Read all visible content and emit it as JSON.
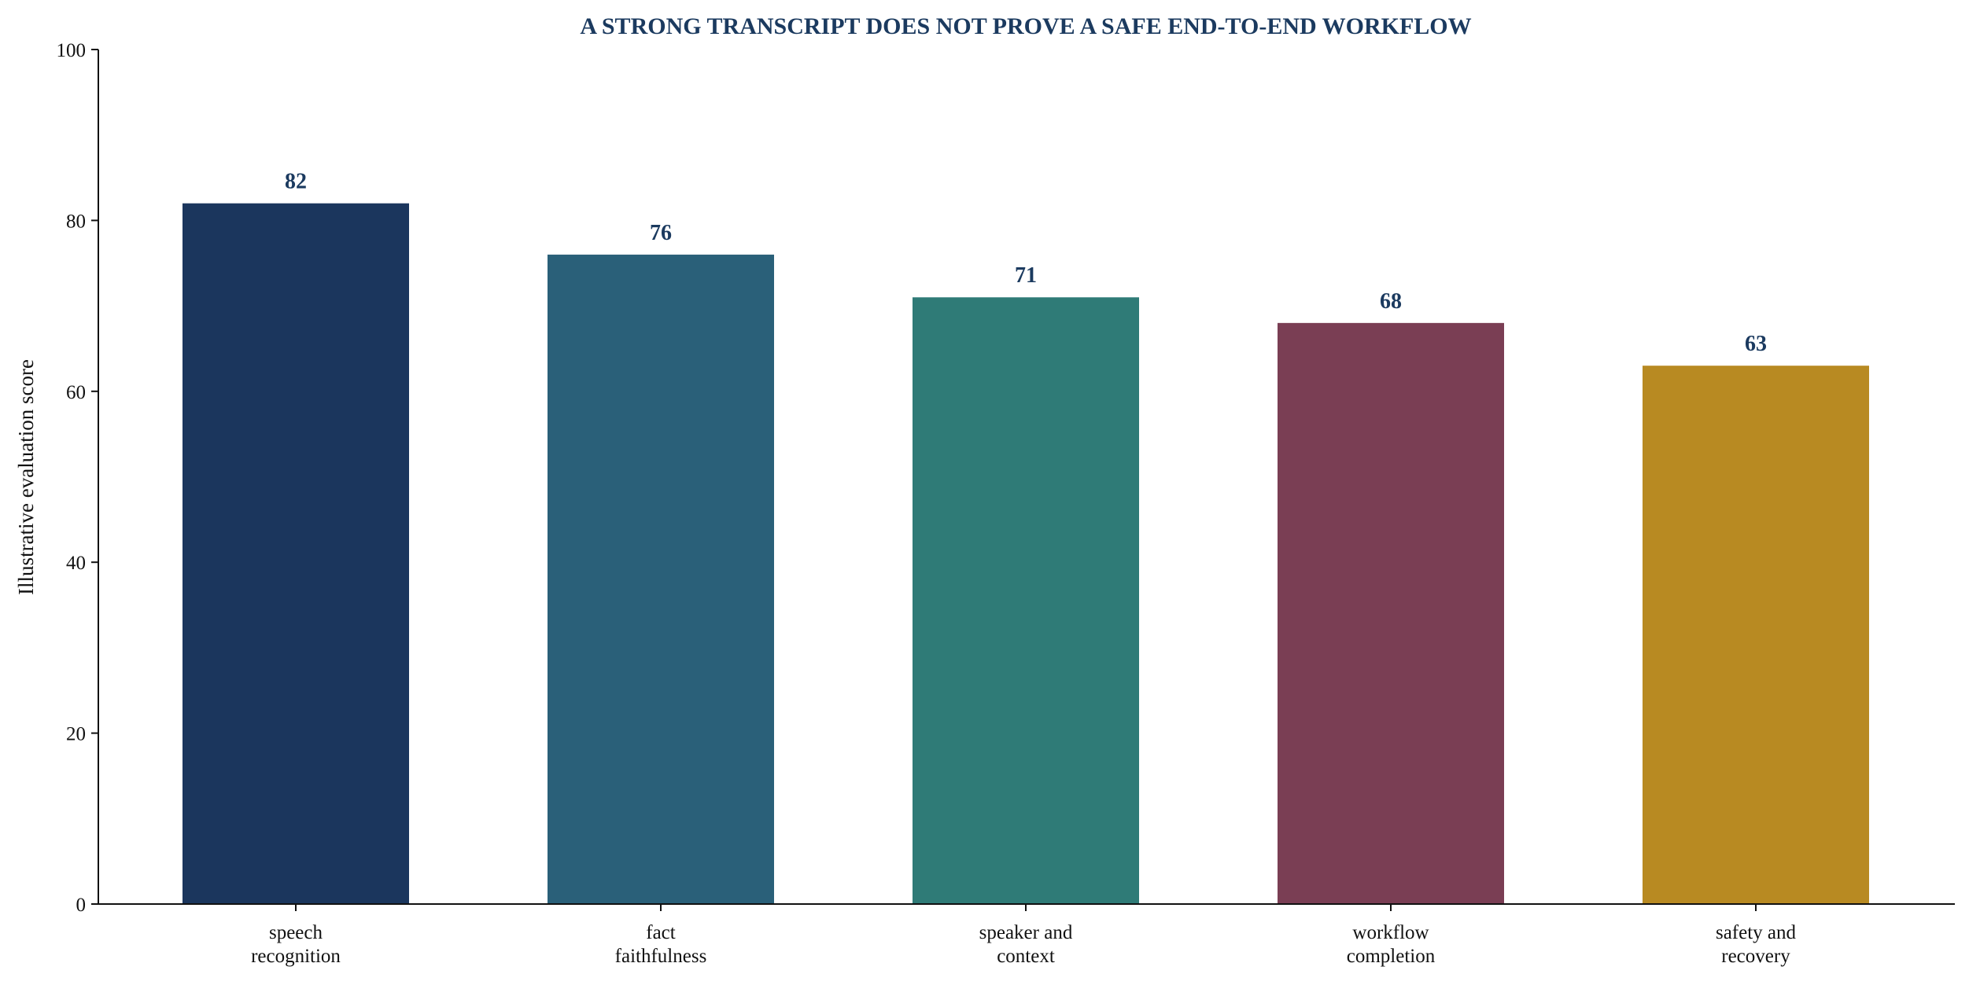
{
  "chart_data": {
    "type": "bar",
    "title": "A STRONG TRANSCRIPT DOES NOT PROVE A SAFE END-TO-END WORKFLOW",
    "xlabel": "",
    "ylabel": "Illustrative evaluation score",
    "ylim": [
      0,
      100
    ],
    "yticks": [
      0,
      20,
      40,
      60,
      80,
      100
    ],
    "grid": false,
    "legend": "none",
    "categories": [
      [
        "speech",
        "recognition"
      ],
      [
        "fact",
        "faithfulness"
      ],
      [
        "speaker and",
        "context"
      ],
      [
        "workflow",
        "completion"
      ],
      [
        "safety and",
        "recovery"
      ]
    ],
    "values": [
      82,
      76,
      71,
      68,
      63
    ],
    "data_labels": [
      "82",
      "76",
      "71",
      "68",
      "63"
    ],
    "colors": [
      "#1b365d",
      "#2a6079",
      "#2f7b77",
      "#7a3e54",
      "#b88a22"
    ]
  }
}
